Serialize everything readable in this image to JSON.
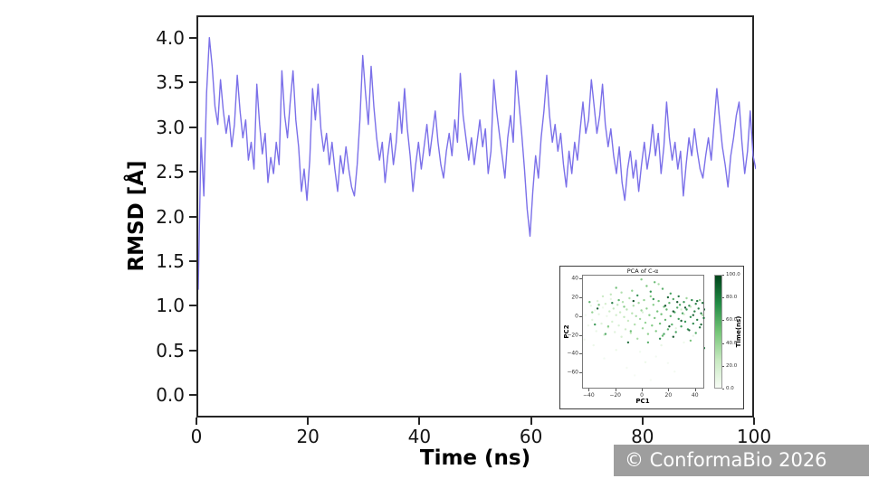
{
  "page": {
    "background": "#ffffff"
  },
  "watermark": {
    "text": "© ConformaBio 2026",
    "bg_color": "#9e9e9e",
    "text_color": "#ffffff"
  },
  "chart_data": [
    {
      "type": "line",
      "title": "",
      "xlabel": "Time (ns)",
      "ylabel": "RMSD [Å]",
      "xlim": [
        0,
        100
      ],
      "ylim": [
        -0.25,
        4.25
      ],
      "xticks": [
        0,
        20,
        40,
        60,
        80,
        100
      ],
      "yticks": [
        0.0,
        0.5,
        1.0,
        1.5,
        2.0,
        2.5,
        3.0,
        3.5,
        4.0
      ],
      "grid": false,
      "legend": "none",
      "line_color": "#7b70e9",
      "series": [
        {
          "name": "RMSD",
          "x_start": 0,
          "x_step": 0.5,
          "values": [
            1.2,
            2.9,
            2.25,
            3.4,
            4.02,
            3.7,
            3.25,
            3.05,
            3.55,
            3.2,
            2.95,
            3.15,
            2.8,
            3.05,
            3.6,
            3.2,
            2.9,
            3.1,
            2.65,
            2.85,
            2.55,
            3.5,
            3.05,
            2.72,
            2.95,
            2.4,
            2.68,
            2.5,
            2.85,
            2.6,
            3.65,
            3.15,
            2.9,
            3.3,
            3.65,
            3.1,
            2.8,
            2.3,
            2.55,
            2.2,
            2.65,
            3.45,
            3.1,
            3.5,
            3.0,
            2.75,
            2.95,
            2.6,
            2.85,
            2.55,
            2.3,
            2.7,
            2.5,
            2.8,
            2.55,
            2.35,
            2.25,
            2.6,
            3.1,
            3.82,
            3.4,
            3.05,
            3.7,
            3.25,
            2.9,
            2.65,
            2.85,
            2.4,
            2.7,
            2.95,
            2.6,
            2.85,
            3.3,
            2.95,
            3.45,
            3.0,
            2.7,
            2.3,
            2.6,
            2.85,
            2.55,
            2.8,
            3.05,
            2.7,
            2.95,
            3.2,
            2.85,
            2.6,
            2.45,
            2.75,
            2.95,
            2.7,
            3.1,
            2.85,
            3.62,
            3.15,
            2.9,
            2.65,
            2.9,
            2.6,
            2.85,
            3.1,
            2.8,
            3.0,
            2.5,
            2.75,
            3.55,
            3.2,
            2.95,
            2.7,
            2.45,
            2.9,
            3.15,
            2.85,
            3.65,
            3.3,
            2.95,
            2.55,
            2.1,
            1.8,
            2.3,
            2.7,
            2.45,
            2.9,
            3.2,
            3.6,
            3.15,
            2.85,
            3.05,
            2.75,
            2.95,
            2.6,
            2.35,
            2.75,
            2.5,
            2.85,
            2.65,
            3.0,
            3.3,
            2.95,
            3.1,
            3.55,
            3.25,
            2.95,
            3.15,
            3.5,
            3.05,
            2.8,
            3.0,
            2.7,
            2.5,
            2.8,
            2.4,
            2.2,
            2.55,
            2.75,
            2.45,
            2.65,
            2.3,
            2.6,
            2.85,
            2.55,
            2.75,
            3.05,
            2.7,
            2.95,
            2.5,
            2.8,
            3.3,
            2.9,
            2.65,
            2.85,
            2.55,
            2.75,
            2.25,
            2.6,
            2.9,
            2.7,
            3.0,
            2.75,
            2.55,
            2.45,
            2.7,
            2.9,
            2.65,
            3.05,
            3.45,
            3.1,
            2.8,
            2.6,
            2.35,
            2.7,
            2.9,
            3.15,
            3.3,
            2.85,
            2.5,
            2.75,
            3.2,
            2.7,
            2.55
          ]
        }
      ]
    },
    {
      "type": "scatter",
      "title": "PCA of C-α",
      "xlabel": "PC1",
      "ylabel": "PC2",
      "xlim": [
        -45,
        47
      ],
      "ylim": [
        -77,
        44
      ],
      "xticks": [
        -40,
        -20,
        0,
        20,
        40
      ],
      "yticks": [
        40,
        20,
        0,
        -20,
        -40,
        -60
      ],
      "grid": false,
      "colorbar": {
        "label": "Time(ns)",
        "ticks": [
          0,
          20,
          40,
          60,
          80,
          100
        ],
        "cmap_name": "Greens",
        "cmap_stops": [
          "#f7fcf5",
          "#c7e9c0",
          "#74c476",
          "#238b45",
          "#00441b"
        ]
      },
      "points": [
        [
          -43,
          2,
          3
        ],
        [
          -41,
          -9,
          6
        ],
        [
          -39,
          12,
          9
        ],
        [
          -38,
          -3,
          12
        ],
        [
          -36,
          7,
          4
        ],
        [
          -35,
          -15,
          8
        ],
        [
          -34,
          17,
          15
        ],
        [
          -33,
          3,
          11
        ],
        [
          -31,
          -7,
          14
        ],
        [
          -30,
          10,
          5
        ],
        [
          -29,
          -19,
          18
        ],
        [
          -28,
          14,
          21
        ],
        [
          -27,
          1,
          7
        ],
        [
          -26,
          -11,
          16
        ],
        [
          -25,
          6,
          24
        ],
        [
          -24,
          19,
          10
        ],
        [
          -23,
          -5,
          19
        ],
        [
          -22,
          9,
          27
        ],
        [
          -21,
          -16,
          13
        ],
        [
          -20,
          2,
          22
        ],
        [
          -19,
          13,
          30
        ],
        [
          -18,
          -9,
          17
        ],
        [
          -17,
          5,
          25
        ],
        [
          -16,
          -21,
          20
        ],
        [
          -15,
          16,
          33
        ],
        [
          -14,
          0,
          28
        ],
        [
          -13,
          -13,
          23
        ],
        [
          -12,
          8,
          31
        ],
        [
          -11,
          -4,
          26
        ],
        [
          -10,
          20,
          35
        ],
        [
          -9,
          -17,
          29
        ],
        [
          -8,
          4,
          32
        ],
        [
          -7,
          12,
          38
        ],
        [
          -6,
          -8,
          34
        ],
        [
          -5,
          1,
          37
        ],
        [
          -4,
          -23,
          36
        ],
        [
          -3,
          15,
          40
        ],
        [
          -2,
          -2,
          39
        ],
        [
          -1,
          7,
          42
        ],
        [
          0,
          -12,
          41
        ],
        [
          1,
          18,
          44
        ],
        [
          2,
          -6,
          43
        ],
        [
          3,
          9,
          46
        ],
        [
          4,
          -18,
          45
        ],
        [
          5,
          2,
          48
        ],
        [
          6,
          22,
          47
        ],
        [
          7,
          -9,
          50
        ],
        [
          8,
          13,
          49
        ],
        [
          9,
          -1,
          52
        ],
        [
          10,
          -15,
          51
        ],
        [
          11,
          6,
          54
        ],
        [
          12,
          17,
          53
        ],
        [
          13,
          -7,
          56
        ],
        [
          14,
          3,
          55
        ],
        [
          15,
          -20,
          58
        ],
        [
          16,
          11,
          57
        ],
        [
          17,
          -3,
          60
        ],
        [
          18,
          8,
          59
        ],
        [
          19,
          -13,
          62
        ],
        [
          20,
          15,
          61
        ],
        [
          21,
          1,
          64
        ],
        [
          22,
          -8,
          63
        ],
        [
          23,
          19,
          66
        ],
        [
          24,
          5,
          65
        ],
        [
          25,
          -16,
          68
        ],
        [
          26,
          10,
          67
        ],
        [
          27,
          -2,
          70
        ],
        [
          28,
          13,
          69
        ],
        [
          29,
          -10,
          72
        ],
        [
          30,
          4,
          71
        ],
        [
          31,
          16,
          74
        ],
        [
          32,
          -5,
          73
        ],
        [
          33,
          8,
          76
        ],
        [
          34,
          -13,
          75
        ],
        [
          35,
          12,
          78
        ],
        [
          36,
          0,
          77
        ],
        [
          37,
          18,
          80
        ],
        [
          38,
          -7,
          79
        ],
        [
          39,
          6,
          82
        ],
        [
          40,
          14,
          81
        ],
        [
          41,
          -3,
          84
        ],
        [
          42,
          9,
          83
        ],
        [
          43,
          -11,
          86
        ],
        [
          44,
          4,
          85
        ],
        [
          45,
          15,
          88
        ],
        [
          46,
          -1,
          87
        ],
        [
          47,
          8,
          90
        ],
        [
          48,
          12,
          89
        ],
        [
          44,
          -8,
          92
        ],
        [
          41,
          17,
          91
        ],
        [
          38,
          2,
          94
        ],
        [
          35,
          -14,
          93
        ],
        [
          32,
          10,
          96
        ],
        [
          29,
          -4,
          95
        ],
        [
          26,
          16,
          98
        ],
        [
          23,
          6,
          97
        ],
        [
          20,
          -10,
          100
        ],
        [
          17,
          12,
          99
        ],
        [
          47,
          -33,
          85
        ],
        [
          36,
          -25,
          52
        ],
        [
          -12,
          -54,
          2
        ],
        [
          6,
          -67,
          1
        ],
        [
          -29,
          -44,
          3
        ],
        [
          19,
          -49,
          2
        ],
        [
          -2,
          -37,
          4
        ],
        [
          31,
          -27,
          5
        ],
        [
          -37,
          -30,
          6
        ],
        [
          10,
          -42,
          3
        ],
        [
          -20,
          -35,
          7
        ],
        [
          24,
          -58,
          2
        ],
        [
          -6,
          -62,
          1
        ],
        [
          38,
          -20,
          8
        ],
        [
          -44,
          -24,
          5
        ],
        [
          14,
          -30,
          9
        ],
        [
          2,
          -48,
          6
        ],
        [
          -8,
          28,
          45
        ],
        [
          3,
          33,
          52
        ],
        [
          -16,
          26,
          34
        ],
        [
          9,
          37,
          58
        ],
        [
          -24,
          24,
          29
        ],
        [
          15,
          30,
          63
        ],
        [
          -1,
          40,
          48
        ],
        [
          21,
          25,
          70
        ],
        [
          -30,
          22,
          25
        ],
        [
          6,
          27,
          75
        ],
        [
          12,
          35,
          37
        ],
        [
          -20,
          31,
          55
        ],
        [
          -38,
          5,
          44
        ],
        [
          -26,
          -10,
          47
        ],
        [
          -14,
          11,
          50
        ],
        [
          -33,
          13,
          53
        ],
        [
          -9,
          -15,
          56
        ],
        [
          -18,
          18,
          59
        ],
        [
          4,
          -27,
          62
        ],
        [
          -28,
          -18,
          65
        ],
        [
          16,
          -18,
          68
        ],
        [
          -36,
          -8,
          71
        ],
        [
          8,
          19,
          74
        ],
        [
          -4,
          23,
          77
        ],
        [
          13,
          -23,
          80
        ],
        [
          -23,
          15,
          83
        ],
        [
          27,
          22,
          86
        ],
        [
          -11,
          -27,
          89
        ],
        [
          19,
          21,
          92
        ],
        [
          -34,
          9,
          95
        ],
        [
          23,
          -21,
          98
        ],
        [
          -7,
          17,
          100
        ],
        [
          0,
          5,
          16
        ],
        [
          -40,
          16,
          60
        ],
        [
          33,
          20,
          40
        ],
        [
          45,
          2,
          36
        ],
        [
          40,
          -17,
          64
        ],
        [
          29,
          8,
          20
        ],
        [
          36,
          11,
          30
        ],
        [
          43,
          18,
          46
        ],
        [
          25,
          -12,
          12
        ],
        [
          31,
          3,
          24
        ]
      ]
    }
  ]
}
